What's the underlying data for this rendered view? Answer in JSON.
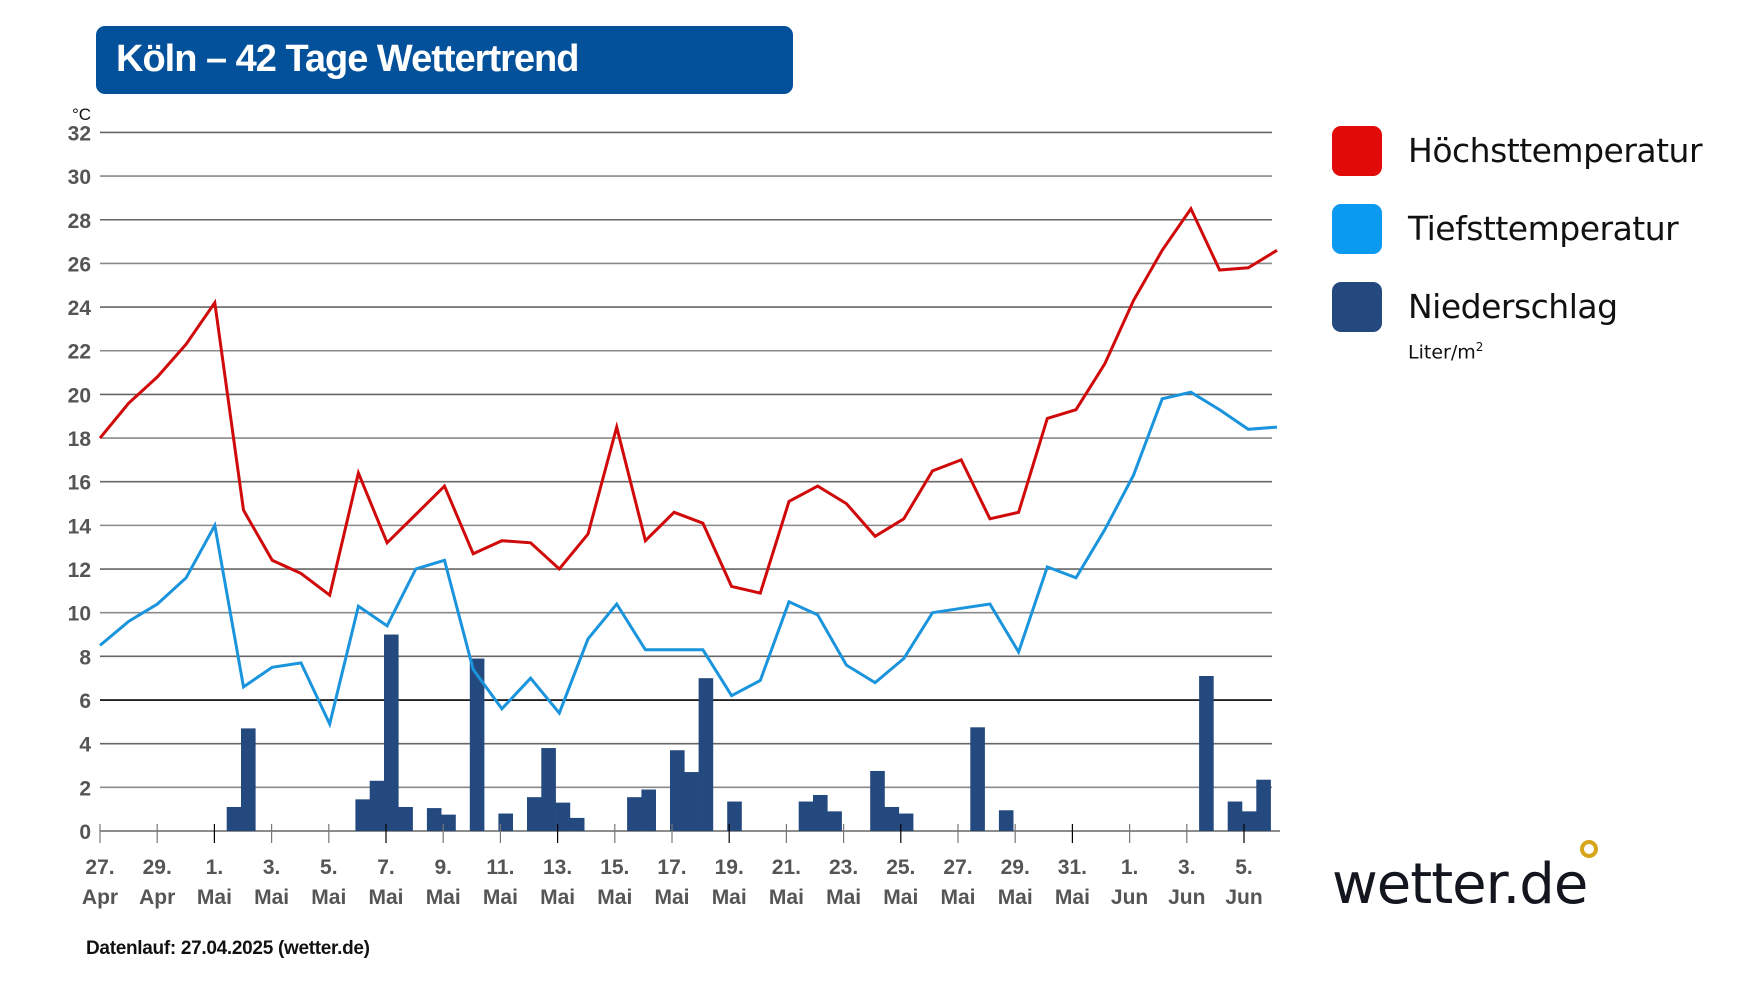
{
  "header": {
    "title": "Köln – 42 Tage Wettertrend"
  },
  "legend": {
    "items": [
      {
        "label": "Höchsttemperatur",
        "color": "#e30a0a"
      },
      {
        "label": "Tiefsttemperatur",
        "color": "#0a9af0"
      },
      {
        "label": "Niederschlag",
        "color": "#24497f",
        "unit": "Liter/m",
        "unit_sup": "2"
      }
    ]
  },
  "footnote": "Datenlauf: 27.04.2025 (wetter.de)",
  "logo": {
    "text": "wetter.de",
    "dot_color": "#d7a51c"
  },
  "chart_data": {
    "type": "line+bar",
    "title": "Köln – 42 Tage Wettertrend",
    "ylabel": "°C",
    "ylim": [
      0,
      32
    ],
    "yticks": [
      "0",
      "2",
      "4",
      "6",
      "8",
      "10",
      "12",
      "14",
      "16",
      "18",
      "20",
      "22",
      "24",
      "26",
      "28",
      "30",
      "32"
    ],
    "grid": true,
    "legend_position": "right",
    "xtick_labels": [
      [
        "27.",
        "Apr"
      ],
      [
        "29.",
        "Apr"
      ],
      [
        "1.",
        "Mai"
      ],
      [
        "3.",
        "Mai"
      ],
      [
        "5.",
        "Mai"
      ],
      [
        "7.",
        "Mai"
      ],
      [
        "9.",
        "Mai"
      ],
      [
        "11.",
        "Mai"
      ],
      [
        "13.",
        "Mai"
      ],
      [
        "15.",
        "Mai"
      ],
      [
        "17.",
        "Mai"
      ],
      [
        "19.",
        "Mai"
      ],
      [
        "21.",
        "Mai"
      ],
      [
        "23.",
        "Mai"
      ],
      [
        "25.",
        "Mai"
      ],
      [
        "27.",
        "Mai"
      ],
      [
        "29.",
        "Mai"
      ],
      [
        "31.",
        "Mai"
      ],
      [
        "1.",
        "Jun"
      ],
      [
        "3.",
        "Jun"
      ],
      [
        "5.",
        "Jun"
      ]
    ],
    "series": [
      {
        "name": "Höchsttemperatur",
        "type": "line",
        "color": "#d00a0a",
        "values": [
          18.0,
          19.6,
          20.8,
          22.3,
          24.2,
          14.7,
          12.4,
          11.8,
          10.8,
          16.4,
          13.2,
          14.5,
          15.8,
          12.7,
          13.3,
          13.2,
          12.0,
          13.6,
          18.5,
          13.3,
          14.6,
          14.1,
          11.2,
          10.9,
          15.1,
          15.8,
          15.0,
          13.5,
          14.3,
          16.5,
          17.0,
          14.3,
          14.6,
          18.9,
          19.3,
          21.4,
          24.3,
          26.6,
          28.5,
          25.7,
          25.8,
          26.6
        ]
      },
      {
        "name": "Tiefsttemperatur",
        "type": "line",
        "color": "#1a94dc",
        "values": [
          8.5,
          9.6,
          10.4,
          11.6,
          14.0,
          6.6,
          7.5,
          7.7,
          4.9,
          10.3,
          9.4,
          12.0,
          12.4,
          7.4,
          5.6,
          7.0,
          5.4,
          8.8,
          10.4,
          8.3,
          8.3,
          8.3,
          6.2,
          6.9,
          10.5,
          9.9,
          7.6,
          6.8,
          7.9,
          10.0,
          10.2,
          10.4,
          8.2,
          12.1,
          11.6,
          13.8,
          16.3,
          19.8,
          20.1,
          19.3,
          18.4,
          18.5
        ]
      },
      {
        "name": "Niederschlag",
        "type": "bar",
        "unit": "Liter/m²",
        "color": "#24497f",
        "values": [
          0,
          0,
          0,
          0,
          0,
          0,
          0,
          0,
          0,
          1.1,
          4.7,
          0,
          0,
          0,
          0,
          0,
          0,
          0,
          1.45,
          2.3,
          9.0,
          1.1,
          0,
          1.05,
          0.75,
          0,
          7.9,
          0,
          0.8,
          0,
          1.55,
          3.8,
          1.3,
          0.6,
          0,
          0,
          0,
          1.55,
          1.9,
          0,
          3.7,
          2.7,
          7.0,
          0,
          1.35,
          0,
          0,
          0,
          0,
          1.35,
          1.65,
          0.9,
          0,
          0,
          2.75,
          1.1,
          0.8,
          0,
          0,
          0,
          0,
          4.75,
          0,
          0.95,
          0,
          0,
          0,
          0,
          0,
          0,
          0,
          0,
          0,
          0,
          0,
          0,
          0,
          7.1,
          0,
          1.35,
          0.9,
          2.35,
          0,
          0
        ]
      }
    ]
  }
}
